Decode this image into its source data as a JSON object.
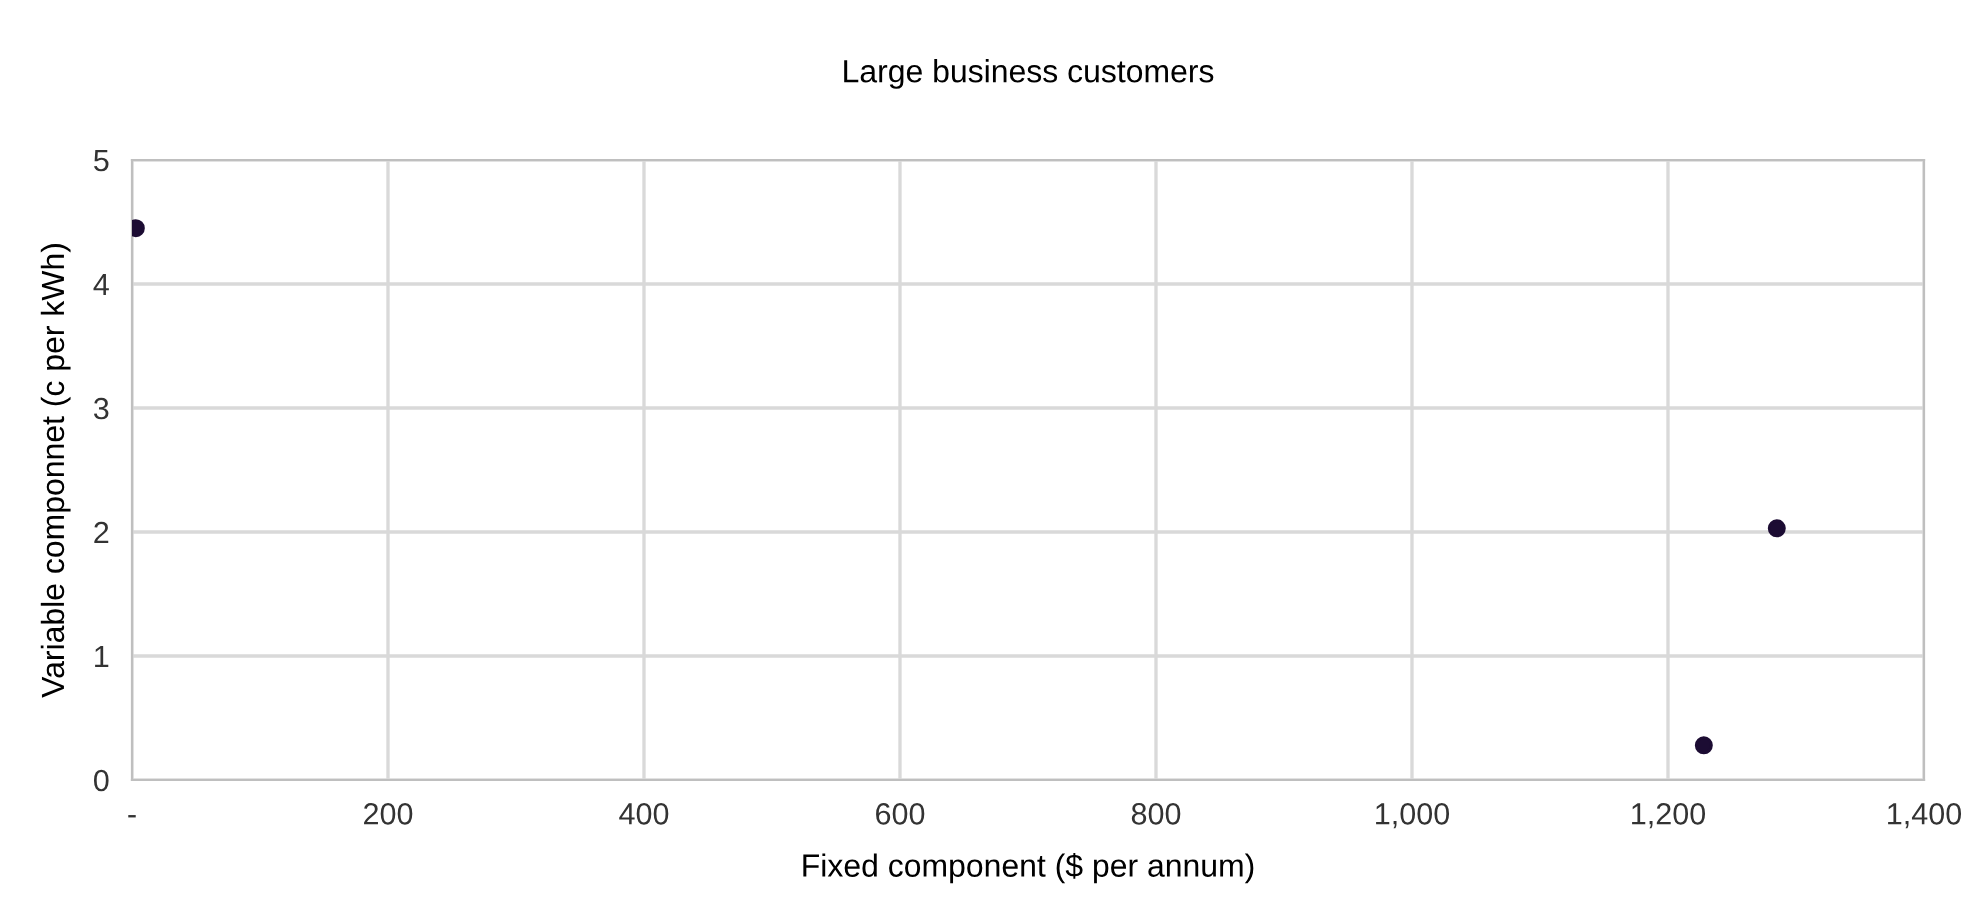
{
  "chart_data": {
    "type": "scatter",
    "title": "Large business customers",
    "xlabel": "Fixed component ($ per annum)",
    "ylabel": "Variable componnet (c per kWh)",
    "x": [
      3,
      1228,
      1285
    ],
    "values": [
      4.45,
      0.28,
      2.03
    ],
    "color": "#1c0c33",
    "marker": "circle",
    "grid": true,
    "xlim": [
      0,
      1400
    ],
    "xticks": [
      {
        "value": 0,
        "label": "-"
      },
      {
        "value": 200,
        "label": "200"
      },
      {
        "value": 400,
        "label": "400"
      },
      {
        "value": 600,
        "label": "600"
      },
      {
        "value": 800,
        "label": "800"
      },
      {
        "value": 1000,
        "label": "1,000"
      },
      {
        "value": 1200,
        "label": "1,200"
      },
      {
        "value": 1400,
        "label": "1,400"
      }
    ],
    "ylim": [
      0,
      5
    ],
    "yticks": [
      0,
      1,
      2,
      3,
      4,
      5
    ]
  }
}
